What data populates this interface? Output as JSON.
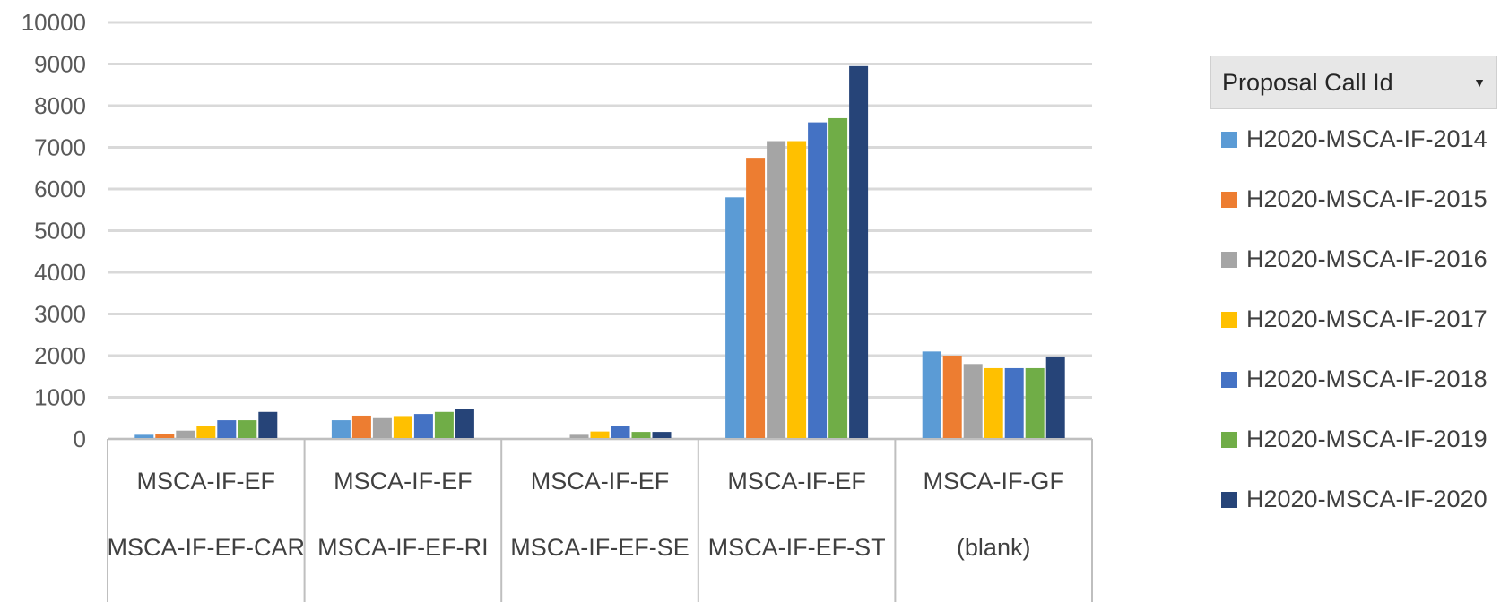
{
  "chart_data": {
    "type": "bar",
    "categories": [
      {
        "outer": "MSCA-IF-EF",
        "inner": "MSCA-IF-EF-CAR"
      },
      {
        "outer": "MSCA-IF-EF",
        "inner": "MSCA-IF-EF-RI"
      },
      {
        "outer": "MSCA-IF-EF",
        "inner": "MSCA-IF-EF-SE"
      },
      {
        "outer": "MSCA-IF-EF",
        "inner": "MSCA-IF-EF-ST"
      },
      {
        "outer": "MSCA-IF-GF",
        "inner": "(blank)"
      }
    ],
    "series": [
      {
        "name": "H2020-MSCA-IF-2014",
        "color": "#5b9bd5",
        "values": [
          100,
          450,
          0,
          5800,
          2100
        ]
      },
      {
        "name": "H2020-MSCA-IF-2015",
        "color": "#ed7d31",
        "values": [
          120,
          560,
          0,
          6750,
          2000
        ]
      },
      {
        "name": "H2020-MSCA-IF-2016",
        "color": "#a5a5a5",
        "values": [
          200,
          500,
          100,
          7150,
          1800
        ]
      },
      {
        "name": "H2020-MSCA-IF-2017",
        "color": "#ffc000",
        "values": [
          320,
          550,
          180,
          7150,
          1700
        ]
      },
      {
        "name": "H2020-MSCA-IF-2018",
        "color": "#4472c4",
        "values": [
          450,
          600,
          320,
          7600,
          1700
        ]
      },
      {
        "name": "H2020-MSCA-IF-2019",
        "color": "#70ad47",
        "values": [
          450,
          650,
          170,
          7700,
          1700
        ]
      },
      {
        "name": "H2020-MSCA-IF-2020",
        "color": "#264478",
        "values": [
          650,
          720,
          170,
          8950,
          1980
        ]
      }
    ],
    "yticks": [
      "0",
      "1000",
      "2000",
      "3000",
      "4000",
      "5000",
      "6000",
      "7000",
      "8000",
      "9000",
      "10000"
    ],
    "ylim": [
      0,
      10000
    ],
    "grid": true,
    "legend_title": "Proposal Call Id",
    "legend_icon": "dropdown-arrow-icon",
    "legend_position": "right"
  }
}
